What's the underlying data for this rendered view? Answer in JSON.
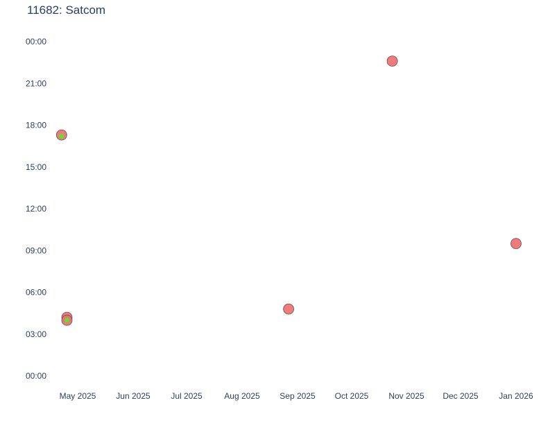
{
  "chart_data": {
    "type": "scatter",
    "title": "11682: Satcom",
    "xlabel": "",
    "ylabel": "",
    "x_ticks": [
      "May 2025",
      "Jun 2025",
      "Jul 2025",
      "Aug 2025",
      "Sep 2025",
      "Oct 2025",
      "Nov 2025",
      "Dec 2025",
      "Jan 2026"
    ],
    "y_ticks": [
      "00:00",
      "03:00",
      "06:00",
      "09:00",
      "12:00",
      "15:00",
      "18:00",
      "21:00",
      "00:00"
    ],
    "y_range_hours": [
      -0.9,
      24.6
    ],
    "grid": false,
    "series": [
      {
        "marker_color": "#f26b6b",
        "outline_color": "#555555",
        "points": [
          {
            "x": "2025-04-22",
            "y": 17.3
          },
          {
            "x": "2025-04-25",
            "y": 4.2
          },
          {
            "x": "2025-04-25",
            "y": 4.0
          },
          {
            "x": "2025-08-27",
            "y": 4.8
          },
          {
            "x": "2025-10-24",
            "y": 22.6
          },
          {
            "x": "2026-01-01",
            "y": 9.5
          }
        ]
      },
      {
        "marker_color": "#66dd33",
        "outline_color": "#66dd33",
        "points": [
          {
            "x": "2025-04-22",
            "y": 17.2
          },
          {
            "x": "2025-04-25",
            "y": 4.0
          }
        ]
      }
    ]
  }
}
